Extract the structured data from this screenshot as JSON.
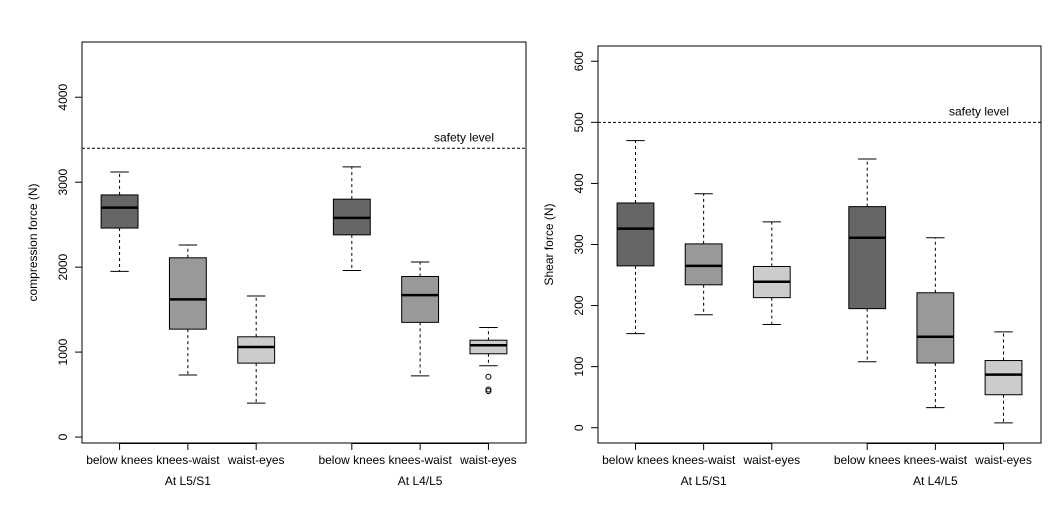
{
  "chart_data": [
    {
      "type": "box",
      "y_label": "compression force (N)",
      "categories": [
        "below knees",
        "knees-waist",
        "waist-eyes",
        "below knees",
        "knees-waist",
        "waist-eyes"
      ],
      "group_labels": [
        "At L5/S1",
        "At L4/L5"
      ],
      "colors": [
        "#666666",
        "#999999",
        "#cccccc",
        "#666666",
        "#999999",
        "#cccccc"
      ],
      "boxes": [
        {
          "whisker_low": 1950,
          "q1": 2460,
          "median": 2700,
          "q3": 2850,
          "whisker_high": 3120,
          "outliers": []
        },
        {
          "whisker_low": 730,
          "q1": 1270,
          "median": 1620,
          "q3": 2110,
          "whisker_high": 2260,
          "outliers": []
        },
        {
          "whisker_low": 400,
          "q1": 870,
          "median": 1060,
          "q3": 1180,
          "whisker_high": 1660,
          "outliers": []
        },
        {
          "whisker_low": 1960,
          "q1": 2380,
          "median": 2580,
          "q3": 2800,
          "whisker_high": 3180,
          "outliers": []
        },
        {
          "whisker_low": 720,
          "q1": 1350,
          "median": 1670,
          "q3": 1890,
          "whisker_high": 2060,
          "outliers": []
        },
        {
          "whisker_low": 840,
          "q1": 980,
          "median": 1080,
          "q3": 1140,
          "whisker_high": 1290,
          "outliers": [
            710,
            560,
            540
          ]
        }
      ],
      "reference_line": {
        "value": 3400,
        "label": "safety level"
      },
      "ylim": [
        -70,
        4650
      ],
      "yticks": [
        0,
        1000,
        2000,
        3000,
        4000
      ]
    },
    {
      "type": "box",
      "y_label": "Shear force (N)",
      "categories": [
        "below knees",
        "knees-waist",
        "waist-eyes",
        "below knees",
        "knees-waist",
        "waist-eyes"
      ],
      "group_labels": [
        "At L5/S1",
        "At L4/L5"
      ],
      "colors": [
        "#666666",
        "#999999",
        "#cccccc",
        "#666666",
        "#999999",
        "#cccccc"
      ],
      "boxes": [
        {
          "whisker_low": 154,
          "q1": 265,
          "median": 326,
          "q3": 368,
          "whisker_high": 470,
          "outliers": []
        },
        {
          "whisker_low": 185,
          "q1": 234,
          "median": 265,
          "q3": 301,
          "whisker_high": 383,
          "outliers": []
        },
        {
          "whisker_low": 169,
          "q1": 213,
          "median": 239,
          "q3": 264,
          "whisker_high": 337,
          "outliers": []
        },
        {
          "whisker_low": 108,
          "q1": 195,
          "median": 311,
          "q3": 362,
          "whisker_high": 440,
          "outliers": []
        },
        {
          "whisker_low": 33,
          "q1": 106,
          "median": 149,
          "q3": 221,
          "whisker_high": 311,
          "outliers": []
        },
        {
          "whisker_low": 8,
          "q1": 54,
          "median": 87,
          "q3": 110,
          "whisker_high": 157,
          "outliers": []
        }
      ],
      "reference_line": {
        "value": 500,
        "label": "safety level"
      },
      "ylim": [
        -25,
        625
      ],
      "yticks": [
        0,
        100,
        200,
        300,
        400,
        500,
        600
      ]
    }
  ]
}
